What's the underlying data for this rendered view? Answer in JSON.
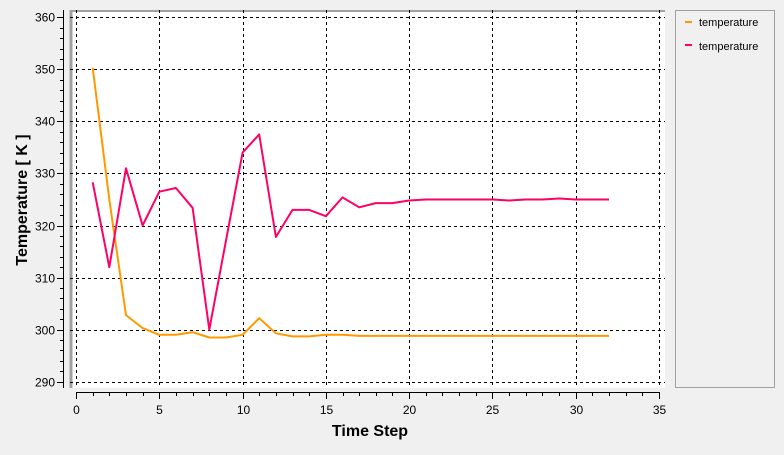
{
  "chart_data": {
    "type": "line",
    "xlabel": "Time Step",
    "ylabel": "Temperature [ K ]",
    "xlim": [
      0,
      35
    ],
    "ylim": [
      290,
      360
    ],
    "xticks": [
      "0",
      "5",
      "10",
      "15",
      "20",
      "25",
      "30",
      "35"
    ],
    "yticks": [
      "290",
      "300",
      "310",
      "320",
      "330",
      "340",
      "350",
      "360"
    ],
    "grid": true,
    "legend_position": "right",
    "x": [
      1,
      2,
      3,
      4,
      5,
      6,
      7,
      8,
      9,
      10,
      11,
      12,
      13,
      14,
      15,
      16,
      17,
      18,
      19,
      20,
      21,
      22,
      23,
      24,
      25,
      26,
      27,
      28,
      29,
      30,
      31,
      32
    ],
    "series": [
      {
        "name": "temperature",
        "color": "#ff9900",
        "values": [
          350.3,
          325,
          302.8,
          300.3,
          299.0,
          299.0,
          299.5,
          298.5,
          298.5,
          299.0,
          302.2,
          299.3,
          298.7,
          298.7,
          299.0,
          299.0,
          298.8,
          298.8,
          298.8,
          298.8,
          298.8,
          298.8,
          298.8,
          298.8,
          298.8,
          298.8,
          298.8,
          298.8,
          298.8,
          298.8,
          298.8,
          298.8
        ]
      },
      {
        "name": "temperature",
        "color": "#ff0066",
        "values": [
          328.3,
          312,
          331,
          320,
          326.5,
          327.2,
          323.4,
          300,
          317,
          334,
          337.5,
          317.8,
          323,
          323,
          321.8,
          325.4,
          323.5,
          324.3,
          324.3,
          324.8,
          325,
          325,
          325,
          325,
          325,
          324.8,
          325,
          325,
          325.2,
          325,
          325,
          325
        ]
      }
    ]
  }
}
